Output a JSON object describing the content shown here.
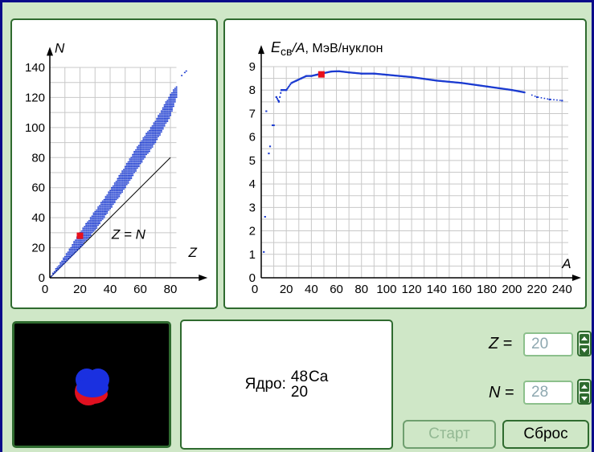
{
  "left_chart": {
    "y_axis_label": "N",
    "x_axis_label": "Z",
    "line_label": "Z = N",
    "y_ticks": [
      "0",
      "20",
      "40",
      "60",
      "80",
      "100",
      "120",
      "140"
    ],
    "x_ticks": [
      "0",
      "20",
      "40",
      "60",
      "80"
    ]
  },
  "right_chart": {
    "y_axis_label_main": "E",
    "y_axis_label_sub": "св",
    "y_axis_label_rest": "/A",
    "y_axis_label_unit": ", МэВ/нуклон",
    "x_axis_label": "A",
    "y_ticks": [
      "0",
      "1",
      "2",
      "3",
      "4",
      "5",
      "6",
      "7",
      "8",
      "9"
    ],
    "x_ticks": [
      "0",
      "20",
      "40",
      "60",
      "80",
      "100",
      "120",
      "140",
      "160",
      "180",
      "200",
      "220",
      "240"
    ]
  },
  "nucleus": {
    "label": "Ядро:",
    "mass_number": "48",
    "atomic_number": "20",
    "element": "Ca"
  },
  "controls": {
    "z_label": "Z",
    "z_eq": " =",
    "z_value": "20",
    "n_label": "N",
    "n_eq": " =",
    "n_value": "28",
    "start_button": "Старт",
    "reset_button": "Сброс"
  },
  "colors": {
    "background": "#cfe7c7",
    "panel_border": "#2f6b2f",
    "data_points": "#1a3ad0",
    "highlight": "#e8101c",
    "window_border": "#0a0a8a"
  },
  "chart_data": [
    {
      "type": "scatter",
      "title": "",
      "xlabel": "Z",
      "ylabel": "N",
      "xlim": [
        0,
        90
      ],
      "ylim": [
        0,
        145
      ],
      "series": [
        {
          "name": "",
          "points_band_low": [
            [
              0,
              0
            ],
            [
              10,
              10
            ],
            [
              20,
              20
            ],
            [
              30,
              32
            ],
            [
              40,
              46
            ],
            [
              50,
              60
            ],
            [
              60,
              76
            ],
            [
              70,
              90
            ],
            [
              80,
              108
            ],
            [
              84,
              120
            ]
          ],
          "points_band_high": [
            [
              0,
              0
            ],
            [
              10,
              14
            ],
            [
              20,
              30
            ],
            [
              30,
              44
            ],
            [
              40,
              58
            ],
            [
              50,
              74
            ],
            [
              60,
              90
            ],
            [
              70,
              104
            ],
            [
              80,
              122
            ],
            [
              84,
              127
            ]
          ]
        },
        {
          "name": "Z = N",
          "points": [
            [
              0,
              0
            ],
            [
              80,
              80
            ]
          ]
        }
      ],
      "highlight_point": [
        20,
        28
      ]
    },
    {
      "type": "scatter",
      "title": "",
      "xlabel": "A",
      "ylabel": "Eсв/A, МэВ/нуклон",
      "xlim": [
        0,
        245
      ],
      "ylim": [
        0,
        9.5
      ],
      "points": [
        [
          2,
          1.1
        ],
        [
          3,
          2.6
        ],
        [
          4,
          7.1
        ],
        [
          6,
          5.3
        ],
        [
          7,
          5.6
        ],
        [
          9,
          6.5
        ],
        [
          10,
          6.5
        ],
        [
          12,
          7.7
        ],
        [
          14,
          7.5
        ],
        [
          16,
          8.0
        ],
        [
          20,
          8.0
        ],
        [
          24,
          8.3
        ],
        [
          28,
          8.4
        ],
        [
          32,
          8.5
        ],
        [
          36,
          8.6
        ],
        [
          40,
          8.6
        ],
        [
          44,
          8.65
        ],
        [
          48,
          8.7
        ],
        [
          56,
          8.79
        ],
        [
          62,
          8.8
        ],
        [
          70,
          8.75
        ],
        [
          80,
          8.7
        ],
        [
          90,
          8.7
        ],
        [
          100,
          8.65
        ],
        [
          120,
          8.55
        ],
        [
          140,
          8.4
        ],
        [
          160,
          8.3
        ],
        [
          180,
          8.15
        ],
        [
          200,
          8.0
        ],
        [
          210,
          7.9
        ],
        [
          220,
          7.7
        ],
        [
          230,
          7.6
        ],
        [
          240,
          7.55
        ]
      ],
      "highlight_point": [
        48,
        8.67
      ]
    }
  ]
}
